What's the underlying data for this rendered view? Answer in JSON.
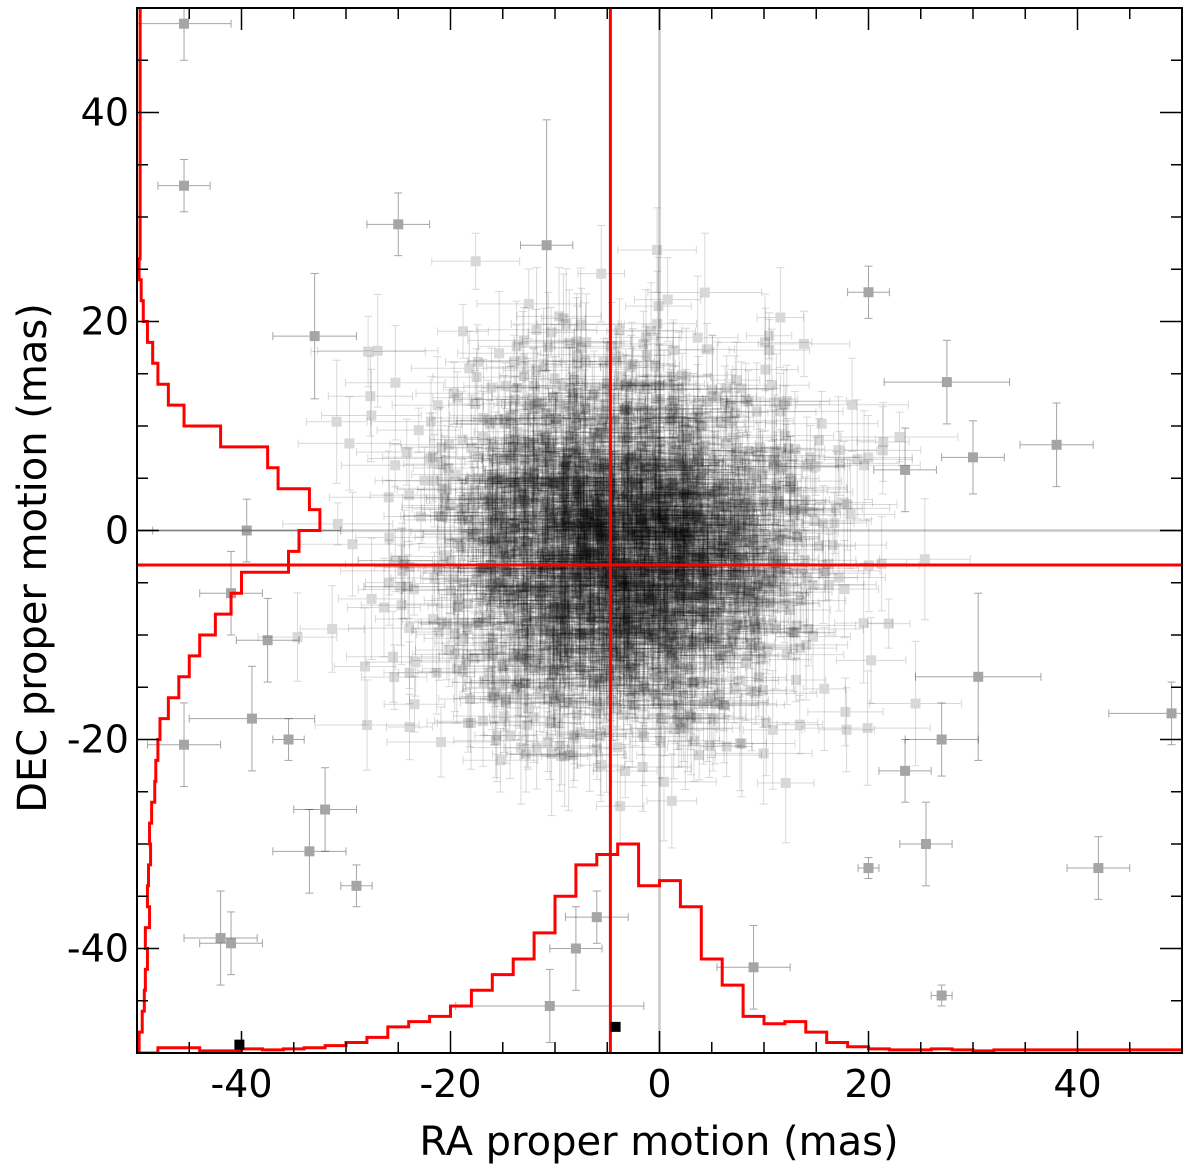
{
  "chart_data": {
    "type": "scatter",
    "xlabel": "RA proper motion (mas)",
    "ylabel": "DEC proper motion (mas)",
    "xlim": [
      -50,
      50
    ],
    "ylim": [
      -50,
      50
    ],
    "x_ticks": [
      -40,
      -20,
      0,
      20,
      40
    ],
    "y_ticks": [
      -40,
      -20,
      0,
      20,
      40
    ],
    "x_minor_step": 5,
    "y_minor_step": 5,
    "grid": false,
    "colors": {
      "points": "#7a7a7a",
      "reference_lines": "#c8c8c8",
      "mean_lines": "#ff0000",
      "histograms": "#ff0000",
      "markers": "#000000"
    },
    "reference_lines": {
      "x": 0,
      "y": 0
    },
    "mean_lines": {
      "x": -4.7,
      "y": -3.3
    },
    "cluster": {
      "approx_points": 2000,
      "center": [
        -3.5,
        -2.0
      ],
      "sigma": [
        9.0,
        8.5
      ],
      "typical_error": [
        4.0,
        4.0
      ]
    },
    "outliers": [
      {
        "x": -45.5,
        "y": 48.5,
        "ex": 4.5,
        "ey": 3.5
      },
      {
        "x": -45.5,
        "y": 33.0,
        "ex": 2.5,
        "ey": 2.5
      },
      {
        "x": -25.0,
        "y": 29.3,
        "ex": 3.0,
        "ey": 3.0
      },
      {
        "x": -33.0,
        "y": 18.6,
        "ex": 4.0,
        "ey": 6.0
      },
      {
        "x": -10.8,
        "y": 27.3,
        "ex": 2.5,
        "ey": 12.0
      },
      {
        "x": 20.0,
        "y": 22.8,
        "ex": 2.0,
        "ey": 2.5
      },
      {
        "x": 27.5,
        "y": 14.2,
        "ex": 6.0,
        "ey": 4.0
      },
      {
        "x": 38.0,
        "y": 8.2,
        "ex": 3.5,
        "ey": 4.0
      },
      {
        "x": 30.0,
        "y": 7.0,
        "ex": 3.0,
        "ey": 3.5
      },
      {
        "x": 23.5,
        "y": 5.8,
        "ex": 3.0,
        "ey": 4.0
      },
      {
        "x": -39.5,
        "y": 0.0,
        "ex": 9.0,
        "ey": 3.0
      },
      {
        "x": -41.0,
        "y": -6.0,
        "ex": 3.0,
        "ey": 4.0
      },
      {
        "x": -37.5,
        "y": -10.5,
        "ex": 3.0,
        "ey": 4.0
      },
      {
        "x": -45.5,
        "y": -20.5,
        "ex": 3.5,
        "ey": 4.0
      },
      {
        "x": -39.0,
        "y": -18.0,
        "ex": 6.0,
        "ey": 5.0
      },
      {
        "x": -35.5,
        "y": -20.0,
        "ex": 1.5,
        "ey": 2.0
      },
      {
        "x": -32.0,
        "y": -26.7,
        "ex": 3.0,
        "ey": 4.0
      },
      {
        "x": -33.5,
        "y": -30.7,
        "ex": 3.5,
        "ey": 4.0
      },
      {
        "x": -29.0,
        "y": -34.0,
        "ex": 1.5,
        "ey": 2.0
      },
      {
        "x": -42.0,
        "y": -39.0,
        "ex": 3.5,
        "ey": 4.5
      },
      {
        "x": -41.0,
        "y": -39.5,
        "ex": 3.0,
        "ey": 3.0
      },
      {
        "x": 30.5,
        "y": -14.0,
        "ex": 6.0,
        "ey": 8.0
      },
      {
        "x": 49.0,
        "y": -17.5,
        "ex": 6.0,
        "ey": 3.0
      },
      {
        "x": 27.0,
        "y": -20.0,
        "ex": 3.5,
        "ey": 3.5
      },
      {
        "x": 23.5,
        "y": -23.0,
        "ex": 2.5,
        "ey": 3.0
      },
      {
        "x": 25.5,
        "y": -30.0,
        "ex": 2.5,
        "ey": 4.0
      },
      {
        "x": 42.0,
        "y": -32.3,
        "ex": 3.0,
        "ey": 3.0
      },
      {
        "x": 27.0,
        "y": -44.5,
        "ex": 1.0,
        "ey": 1.0
      },
      {
        "x": 9.0,
        "y": -41.8,
        "ex": 3.5,
        "ey": 4.0
      },
      {
        "x": 20.0,
        "y": -32.3,
        "ex": 1.0,
        "ey": 1.0
      },
      {
        "x": -10.5,
        "y": -45.5,
        "ex": 9.0,
        "ey": 3.5
      },
      {
        "x": -6.0,
        "y": -37.0,
        "ex": 3.0,
        "ey": 2.5
      },
      {
        "x": -8.0,
        "y": -40.0,
        "ex": 2.5,
        "ey": 4.0
      }
    ],
    "black_markers": [
      {
        "x": -40.2,
        "y": -49.2
      },
      {
        "x": -4.2,
        "y": -47.5
      }
    ],
    "ra_histogram": {
      "bin_edges": [
        -48,
        -46,
        -44,
        -42,
        -40,
        -38,
        -36,
        -34,
        -32,
        -30,
        -28,
        -26,
        -24,
        -22,
        -20,
        -18,
        -16,
        -14,
        -12,
        -10,
        -8,
        -6,
        -4,
        -2,
        0,
        2,
        4,
        6,
        8,
        10,
        12,
        14,
        16,
        18,
        20,
        22,
        24,
        26,
        28,
        30,
        32
      ],
      "levels": [
        -49.5,
        -49.5,
        -49.8,
        -49.8,
        -49.6,
        -49.7,
        -49.6,
        -49.5,
        -49.3,
        -49.0,
        -48.5,
        -47.5,
        -47.0,
        -46.5,
        -45.5,
        -44.0,
        -42.5,
        -41.0,
        -38.5,
        -35.0,
        -32.0,
        -31.0,
        -30.0,
        -34.0,
        -33.5,
        -36.0,
        -41.0,
        -43.5,
        -46.5,
        -47.2,
        -47.0,
        -48.0,
        -49.0,
        -49.4,
        -49.6,
        -49.7,
        -49.7,
        -49.6,
        -49.7,
        -49.8
      ]
    },
    "dec_histogram": {
      "bin_edges": [
        -50,
        -48,
        -46,
        -44,
        -42,
        -40,
        -38,
        -36,
        -34,
        -32,
        -30,
        -28,
        -26,
        -24,
        -22,
        -20,
        -18,
        -16,
        -14,
        -12,
        -10,
        -8,
        -6,
        -4,
        -2,
        0,
        2,
        4,
        6,
        8,
        10,
        12,
        14,
        16,
        18,
        20,
        22,
        24,
        26
      ],
      "levels": [
        -49.8,
        -49.5,
        -49.3,
        -49.2,
        -49.0,
        -49.2,
        -48.8,
        -49.0,
        -48.9,
        -48.7,
        -48.8,
        -48.6,
        -48.3,
        -48.2,
        -48.0,
        -47.8,
        -47.0,
        -46.0,
        -45.0,
        -44.0,
        -42.5,
        -41.0,
        -40.0,
        -35.5,
        -34.5,
        -32.5,
        -33.5,
        -36.5,
        -37.5,
        -42.0,
        -45.5,
        -47.0,
        -48.0,
        -48.5,
        -49.0,
        -49.4,
        -49.6,
        -49.8
      ]
    }
  }
}
